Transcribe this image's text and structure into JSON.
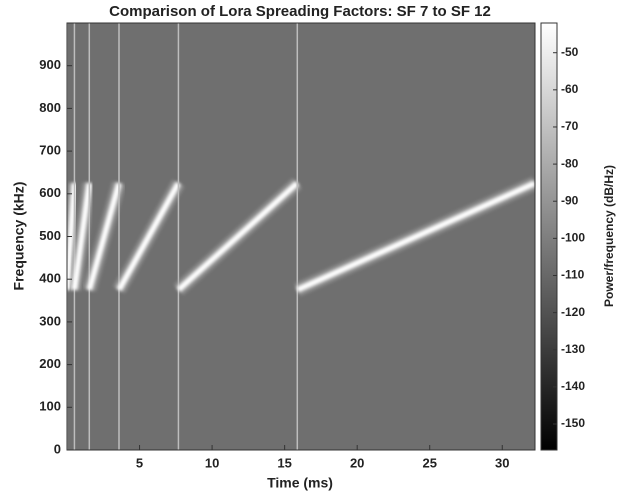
{
  "chart_data": {
    "type": "spectrogram",
    "title": "Comparison of Lora Spreading Factors: SF 7 to SF 12",
    "x_label": "Time (ms)",
    "y_label": "Frequency (kHz)",
    "colorbar_label": "Power/frequency (dB/Hz)",
    "xlim": [
      0,
      32.256
    ],
    "xticks": [
      5,
      10,
      15,
      20,
      25,
      30
    ],
    "ylim": [
      0,
      1000
    ],
    "yticks": [
      0,
      100,
      200,
      300,
      400,
      500,
      600,
      700,
      800,
      900
    ],
    "clim": [
      -157,
      -42
    ],
    "cticks": [
      -50,
      -60,
      -70,
      -80,
      -90,
      -100,
      -110,
      -120,
      -130,
      -140,
      -150
    ],
    "background_color": "#6f6f6f",
    "chirp_color": "#ffffff",
    "chirps": {
      "t_start": [
        0,
        0.512,
        1.536,
        3.584,
        7.68,
        15.872
      ],
      "t_end": [
        0.512,
        1.536,
        3.584,
        7.68,
        15.872,
        32.256
      ],
      "f_start": [
        375,
        375,
        375,
        375,
        375,
        375
      ],
      "f_end": [
        625,
        625,
        625,
        625,
        625,
        625
      ]
    }
  }
}
